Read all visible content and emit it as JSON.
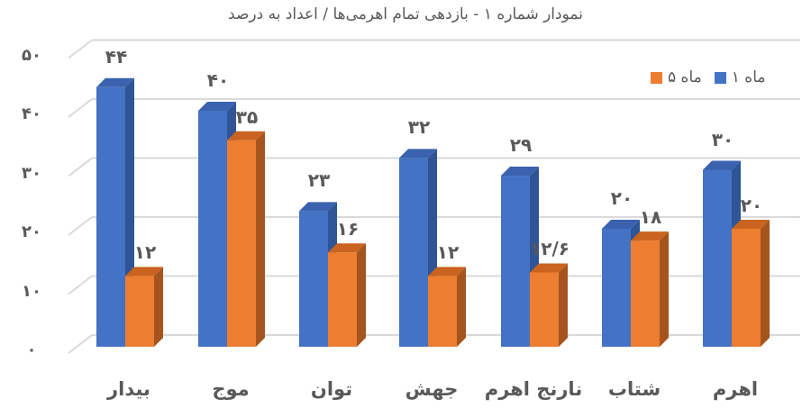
{
  "chart_data": {
    "type": "bar",
    "title": "نمودار شماره ۱ - بازدهی تمام اهرمی‌ها / اعداد به درصد",
    "xlabel": "",
    "ylabel": "",
    "ylim": [
      0,
      50
    ],
    "yticks": [
      0,
      10,
      20,
      30,
      40,
      50
    ],
    "ytick_labels": [
      "۰",
      "۱۰",
      "۲۰",
      "۳۰",
      "۴۰",
      "۵۰"
    ],
    "grid": true,
    "legend_position": "top-right",
    "style": "3d-clustered-column",
    "categories": [
      "بیدار",
      "موج",
      "توان",
      "جهش",
      "نارنج اهرم",
      "شتاب",
      "اهرم"
    ],
    "series": [
      {
        "name": "۱ ماه",
        "color": "#4472C4",
        "values": [
          44,
          40,
          23,
          32,
          29,
          20,
          30
        ],
        "labels": [
          "۴۴",
          "۴۰",
          "۲۳",
          "۳۲",
          "۲۹",
          "۲۰",
          "۳۰"
        ]
      },
      {
        "name": "۵ ماه",
        "color": "#ED7D31",
        "values": [
          12,
          35,
          16,
          12,
          12.6,
          18,
          20
        ],
        "labels": [
          "۱۲",
          "۳۵",
          "۱۶",
          "۱۲",
          "۱۲/۶",
          "۱۸",
          "۲۰"
        ]
      }
    ]
  },
  "legend": {
    "items": [
      {
        "label": "۵ ماه",
        "color": "#ED7D31"
      },
      {
        "label": "۱ ماه",
        "color": "#4472C4"
      }
    ]
  }
}
